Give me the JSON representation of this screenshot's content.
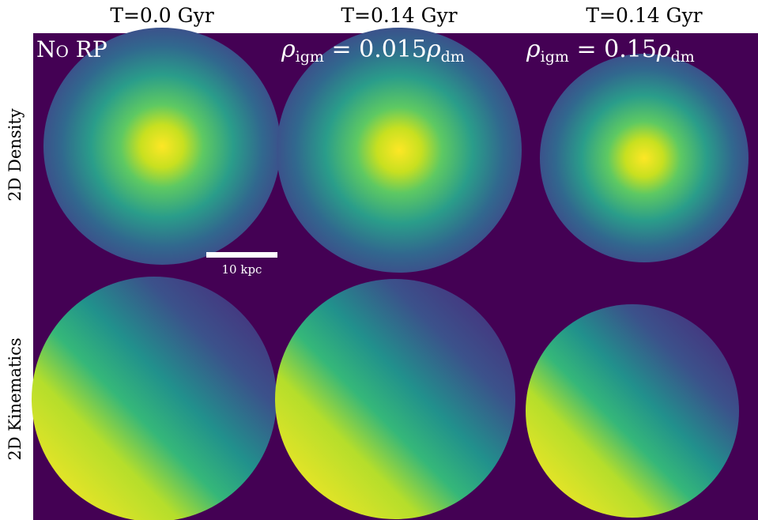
{
  "columns": [
    {
      "title": "T=0.0 Gyr"
    },
    {
      "title": "T=0.14 Gyr"
    },
    {
      "title": "T=0.14 Gyr"
    }
  ],
  "rows": [
    {
      "label": "2D Density"
    },
    {
      "label": "2D Kinematics"
    }
  ],
  "panels": [
    {
      "label": "No RP"
    },
    {
      "label": {
        "symbol": "ρ",
        "sub": "igm",
        "equals": " = 0.015",
        "symbol2": "ρ",
        "sub2": "dm"
      }
    },
    {
      "label": {
        "symbol": "ρ",
        "sub": "igm",
        "equals": " = 0.15",
        "symbol2": "ρ",
        "sub2": "dm"
      }
    }
  ],
  "scale_bar": {
    "label": "10 kpc"
  }
}
